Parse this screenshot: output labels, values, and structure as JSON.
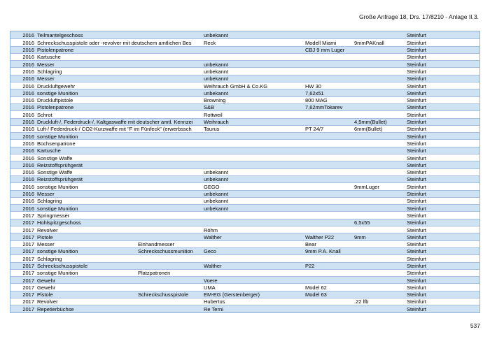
{
  "header": {
    "title": "Große Anfrage 18, Drs. 17/8210 - Anlage II.3."
  },
  "footer": {
    "page_number": "537"
  },
  "colors": {
    "row_stripe": "#cfe2f3",
    "row_border": "#a4c0de",
    "table_border": "#8fb1d6",
    "text": "#000000"
  },
  "table": {
    "rows": [
      [
        "2016",
        "Teilmantelgeschoss",
        "",
        "unbekannt",
        "",
        "",
        "Steinfurt"
      ],
      [
        "2016",
        "Schreckschusspistole oder -revolver mit deutschem amtlichen Bes",
        "",
        "Reck",
        "Modell Miami",
        "9mmPAKnall",
        "Steinfurt"
      ],
      [
        "2016",
        "Pistolenpatrone",
        "",
        "",
        "CBJ 9 mm Luger",
        "",
        "Steinfurt"
      ],
      [
        "2016",
        "Kartusche",
        "",
        "",
        "",
        "",
        "Steinfurt"
      ],
      [
        "2016",
        "Messer",
        "",
        "unbekannt",
        "",
        "",
        "Steinfurt"
      ],
      [
        "2016",
        "Schlagring",
        "",
        "unbekannt",
        "",
        "",
        "Steinfurt"
      ],
      [
        "2016",
        "Messer",
        "",
        "unbekannt",
        "",
        "",
        "Steinfurt"
      ],
      [
        "2016",
        "Druckluftgewehr",
        "",
        "Weihrauch GmbH & Co.KG",
        "HW 30",
        "",
        "Steinfurt"
      ],
      [
        "2016",
        "sonstige Munition",
        "",
        "unbekannt",
        "7,62x51",
        "",
        "Steinfurt"
      ],
      [
        "2016",
        "Druckluftpistole",
        "",
        "Browning",
        "800 MAG",
        "",
        "Steinfurt"
      ],
      [
        "2016",
        "Pistolenpatrone",
        "",
        "S&B",
        "7,62mmTokarev",
        "",
        "Steinfurt"
      ],
      [
        "2016",
        "Schrot",
        "",
        "Rottweil",
        "",
        "",
        "Steinfurt"
      ],
      [
        "2016",
        "Druckluft-/, Federdruck-/, Kaltgaswaffe mit deutscher amtl. Kennzei",
        "",
        "Weihrauch",
        "",
        "4,5mm(Bullet)",
        "Steinfurt"
      ],
      [
        "2016",
        "Luft-/ Federdruck-/ CO2-Kurzwaffe mit \"F im Fünfeck\" (erwerbssch",
        "",
        "Taurus",
        "PT 24/7",
        "6mm(Bullet)",
        "Steinfurt"
      ],
      [
        "2016",
        "sonstige Munition",
        "",
        "",
        "",
        "",
        "Steinfurt"
      ],
      [
        "2016",
        "Büchsenpatrone",
        "",
        "",
        "",
        "",
        "Steinfurt"
      ],
      [
        "2016",
        "Kartusche",
        "",
        "",
        "",
        "",
        "Steinfurt"
      ],
      [
        "2016",
        "Sonstige Waffe",
        "",
        "",
        "",
        "",
        "Steinfurt"
      ],
      [
        "2016",
        "Reizstoffsprühgerät",
        "",
        "",
        "",
        "",
        "Steinfurt"
      ],
      [
        "2016",
        "Sonstige Waffe",
        "",
        "unbekannt",
        "",
        "",
        "Steinfurt"
      ],
      [
        "2016",
        "Reizstoffsprühgerät",
        "",
        "unbekannt",
        "",
        "",
        "Steinfurt"
      ],
      [
        "2016",
        "sonstige Munition",
        "",
        "GEGO",
        "",
        "9mmLuger",
        "Steinfurt"
      ],
      [
        "2016",
        "Messer",
        "",
        "unbekannt",
        "",
        "",
        "Steinfurt"
      ],
      [
        "2016",
        "Schlagring",
        "",
        "unbekannt",
        "",
        "",
        "Steinfurt"
      ],
      [
        "2016",
        "sonstige Munition",
        "",
        "unbekannt",
        "",
        "",
        "Steinfurt"
      ],
      [
        "2017",
        "Springmesser",
        "",
        "",
        "",
        "",
        "Steinfurt"
      ],
      [
        "2017",
        "Hohlspitzgeschoss",
        "",
        "",
        "",
        "6,5x55",
        "Steinfurt"
      ],
      [
        "2017",
        "Revolver",
        "",
        "Röhm",
        "",
        "",
        "Steinfurt"
      ],
      [
        "2017",
        "Pistole",
        "",
        "Walther",
        "Walther P22",
        "9mm",
        "Steinfurt"
      ],
      [
        "2017",
        "Messer",
        "Einhandmesser",
        "",
        "Bear",
        "",
        "Steinfurt"
      ],
      [
        "2017",
        "sonstige Munition",
        "Schreckschussmunition",
        "Geco",
        "9mm P.A. Knall",
        "",
        "Steinfurt"
      ],
      [
        "2017",
        "Schlagring",
        "",
        "",
        "",
        "",
        "Steinfurt"
      ],
      [
        "2017",
        "Schreckschusspistole",
        "",
        "Walther",
        "P22",
        "",
        "Steinfurt"
      ],
      [
        "2017",
        "sonstige Munition",
        "Platzpatronen",
        "",
        "",
        "",
        "Steinfurt"
      ],
      [
        "2017",
        "Gewehr",
        "",
        "Voere",
        "",
        "",
        "Steinfurt"
      ],
      [
        "2017",
        "Gewehr",
        "",
        "UMA",
        "Model 62",
        "",
        "Steinfurt"
      ],
      [
        "2017",
        "Pistole",
        "Schreckschusspistole",
        "EM-EG (Gerstenberger)",
        "Model 63",
        "",
        "Steinfurt"
      ],
      [
        "2017",
        "Revolver",
        "",
        "Hubertus",
        "",
        ".22 lfb",
        "Steinfurt"
      ],
      [
        "2017",
        "Repetierbüchse",
        "",
        "Re Terni",
        "",
        "",
        "Steinfurt"
      ]
    ]
  }
}
